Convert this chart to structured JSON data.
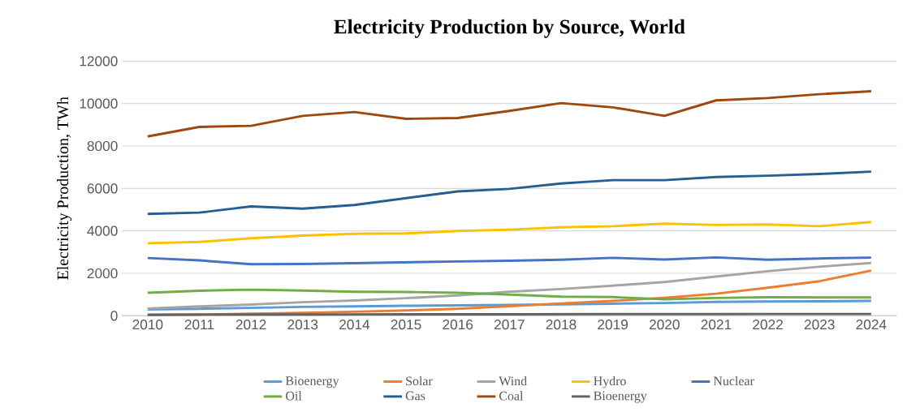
{
  "chart_data": {
    "type": "line",
    "title": "Electricity Production by Source, World",
    "ylabel": "Electricity Production, TWh",
    "categories": [
      "2010",
      "2011",
      "2012",
      "2013",
      "2014",
      "2015",
      "2016",
      "2017",
      "2018",
      "2019",
      "2020",
      "2021",
      "2022",
      "2023",
      "2024"
    ],
    "series": [
      {
        "name": "Bioenergy",
        "color": "#5b9bd5",
        "values": [
          300,
          330,
          370,
          420,
          440,
          470,
          490,
          510,
          540,
          570,
          600,
          650,
          670,
          680,
          700
        ]
      },
      {
        "name": "Solar",
        "color": "#ed7d31",
        "values": [
          30,
          60,
          100,
          140,
          190,
          250,
          330,
          450,
          580,
          700,
          850,
          1040,
          1320,
          1630,
          2130
        ]
      },
      {
        "name": "Wind",
        "color": "#a5a5a5",
        "values": [
          340,
          440,
          530,
          640,
          720,
          830,
          960,
          1130,
          1260,
          1420,
          1590,
          1850,
          2100,
          2310,
          2490
        ]
      },
      {
        "name": "Hydro",
        "color": "#ffc000",
        "values": [
          3420,
          3480,
          3650,
          3780,
          3860,
          3880,
          4000,
          4060,
          4170,
          4220,
          4340,
          4280,
          4300,
          4220,
          4420
        ]
      },
      {
        "name": "Nuclear",
        "color": "#4472c4",
        "values": [
          2720,
          2610,
          2430,
          2440,
          2480,
          2520,
          2560,
          2590,
          2640,
          2730,
          2650,
          2750,
          2640,
          2700,
          2740
        ]
      },
      {
        "name": "Oil",
        "color": "#70ad47",
        "values": [
          1080,
          1180,
          1230,
          1190,
          1130,
          1120,
          1080,
          1000,
          900,
          880,
          780,
          840,
          870,
          860,
          860
        ]
      },
      {
        "name": "Gas",
        "color": "#255e91",
        "values": [
          4800,
          4860,
          5150,
          5050,
          5220,
          5540,
          5860,
          5980,
          6230,
          6390,
          6390,
          6540,
          6600,
          6680,
          6790
        ]
      },
      {
        "name": "Coal",
        "color": "#9e480e",
        "values": [
          8450,
          8900,
          8950,
          9420,
          9600,
          9280,
          9320,
          9650,
          10020,
          9820,
          9420,
          10150,
          10260,
          10440,
          10580
        ]
      },
      {
        "name": "Bioenergy",
        "color": "#636363",
        "values": [
          50,
          55,
          60,
          62,
          65,
          68,
          70,
          72,
          75,
          78,
          80,
          82,
          85,
          85,
          85
        ]
      }
    ],
    "ylim": [
      0,
      12000
    ],
    "yticks": [
      0,
      2000,
      4000,
      6000,
      8000,
      10000,
      12000
    ],
    "grid": "y",
    "legend": "bottom"
  }
}
